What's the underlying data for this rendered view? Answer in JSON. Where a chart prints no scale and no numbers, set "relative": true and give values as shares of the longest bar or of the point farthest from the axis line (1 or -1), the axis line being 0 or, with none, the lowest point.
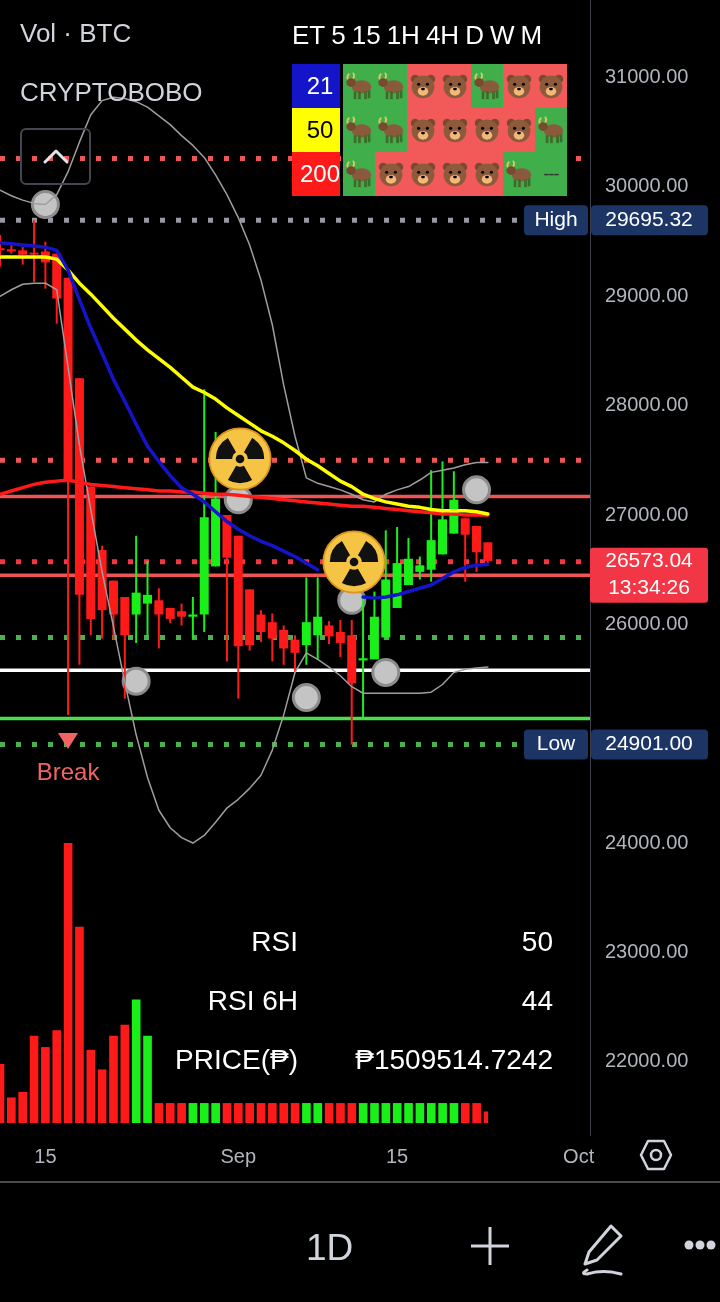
{
  "chart_data": [
    {
      "type": "candlestick",
      "title": "Vol · BTC",
      "subtitle": "CRYPTOBOBO",
      "x": [
        "--08-11",
        "--08-12",
        "--08-13",
        "--08-14",
        "--08-15",
        "--08-16",
        "--08-17",
        "--08-18",
        "--08-19",
        "--08-20",
        "--08-21",
        "--08-22",
        "--08-23",
        "--08-24",
        "--08-25",
        "--08-26",
        "--08-27",
        "--08-28",
        "--08-29",
        "--08-30",
        "--08-31",
        "--09-01",
        "--09-02",
        "--09-03",
        "--09-04",
        "--09-05",
        "--09-06",
        "--09-07",
        "--09-08",
        "--09-09",
        "--09-10",
        "--09-11",
        "--09-12",
        "--09-13",
        "--09-14",
        "--09-15",
        "--09-16",
        "--09-17",
        "--09-18",
        "--09-19",
        "--09-20",
        "--09-21",
        "--09-22",
        "--09-23"
      ],
      "ohlc": [
        [
          29440,
          29560,
          29270,
          29420
        ],
        [
          29430,
          29470,
          29390,
          29410
        ],
        [
          29420,
          29450,
          29290,
          29380
        ],
        [
          29400,
          29695.32,
          29130,
          29390
        ],
        [
          29410,
          29500,
          29070,
          29310
        ],
        [
          29390,
          29390,
          28750,
          28980
        ],
        [
          29170,
          29170,
          25170,
          27300
        ],
        [
          28250,
          28250,
          25630,
          26270
        ],
        [
          27260,
          27260,
          25900,
          26050
        ],
        [
          26680,
          26720,
          25870,
          26130
        ],
        [
          26400,
          26400,
          25860,
          26090
        ],
        [
          26250,
          26250,
          25320,
          25900
        ],
        [
          26090,
          26810,
          25830,
          26290
        ],
        [
          26190,
          26580,
          25900,
          26270
        ],
        [
          26220,
          26330,
          25780,
          26090
        ],
        [
          26150,
          26150,
          26010,
          26050
        ],
        [
          26120,
          26190,
          25990,
          26070
        ],
        [
          26070,
          26250,
          25870,
          26090
        ],
        [
          26090,
          28150,
          25930,
          26980
        ],
        [
          26530,
          27760,
          26530,
          27150
        ],
        [
          27000,
          27000,
          25660,
          26610
        ],
        [
          26810,
          26810,
          25320,
          25800
        ],
        [
          26320,
          26320,
          25760,
          25810
        ],
        [
          26090,
          26130,
          25840,
          25930
        ],
        [
          26020,
          26100,
          25660,
          25870
        ],
        [
          25950,
          25990,
          25630,
          25780
        ],
        [
          25860,
          25900,
          25560,
          25740
        ],
        [
          25810,
          26430,
          25630,
          26020
        ],
        [
          25900,
          26430,
          25680,
          26070
        ],
        [
          25990,
          26030,
          25820,
          25890
        ],
        [
          25930,
          26040,
          25700,
          25830
        ],
        [
          25900,
          26040,
          24901,
          25460
        ],
        [
          25670,
          26260,
          25150,
          25690
        ],
        [
          25680,
          26300,
          25680,
          26070
        ],
        [
          25880,
          26860,
          25880,
          26410
        ],
        [
          26150,
          26890,
          26150,
          26560
        ],
        [
          26360,
          26790,
          26360,
          26600
        ],
        [
          26480,
          26620,
          26410,
          26540
        ],
        [
          26500,
          27410,
          26390,
          26770
        ],
        [
          26640,
          27490,
          26640,
          26960
        ],
        [
          26830,
          27400,
          26830,
          27140
        ],
        [
          26970,
          26970,
          26390,
          26820
        ],
        [
          26900,
          26900,
          26480,
          26660
        ],
        [
          26750,
          26750,
          26560,
          26580
        ]
      ],
      "colors": [
        "#ff1a1a",
        "#ff1a1a",
        "#ff1a1a",
        "#ff1a1a",
        "#ff1a1a",
        "#ff1a1a",
        "#ff1a1a",
        "#ff1a1a",
        "#ff1a1a",
        "#ff1a1a",
        "#ff1a1a",
        "#ff1a1a",
        "#1aef1a",
        "#1aef1a",
        "#ff1a1a",
        "#ff1a1a",
        "#ff1a1a",
        "#1aef1a",
        "#1aef1a",
        "#1aef1a",
        "#ff1a1a",
        "#ff1a1a",
        "#ff1a1a",
        "#ff1a1a",
        "#ff1a1a",
        "#ff1a1a",
        "#ff1a1a",
        "#1aef1a",
        "#1aef1a",
        "#ff1a1a",
        "#ff1a1a",
        "#ff1a1a",
        "#1aef1a",
        "#1aef1a",
        "#1aef1a",
        "#1aef1a",
        "#1aef1a",
        "#1aef1a",
        "#1aef1a",
        "#1aef1a",
        "#1aef1a",
        "#ff1a1a",
        "#ff1a1a",
        "#ff1a1a"
      ],
      "series": [
        {
          "type": "line",
          "name": "21",
          "color": "#1414c8",
          "values": [
            29490,
            29480,
            29470,
            29460,
            29450,
            29420,
            29240,
            28970,
            28710,
            28480,
            28240,
            28040,
            27830,
            27630,
            27490,
            27360,
            27250,
            27190,
            27120,
            27030,
            26940,
            26870,
            26810,
            26760,
            26720,
            26670,
            26620,
            26560,
            26500,
            null,
            null,
            null,
            26250,
            26240,
            26250,
            26270,
            26300,
            26330,
            26360,
            26420,
            26480,
            26520,
            26540,
            26550
          ]
        },
        {
          "type": "line",
          "name": "50",
          "color": "#ffff00",
          "values": [
            29360,
            29360,
            29360,
            29360,
            29360,
            29340,
            29240,
            29120,
            29020,
            28910,
            28800,
            28700,
            28600,
            28510,
            28430,
            28350,
            28260,
            28170,
            28120,
            28060,
            27980,
            27910,
            27840,
            27770,
            27720,
            27660,
            27590,
            27510,
            27450,
            27380,
            27310,
            27260,
            27190,
            27150,
            27120,
            27100,
            27080,
            27070,
            27050,
            27040,
            27040,
            27040,
            27030,
            27010
          ]
        },
        {
          "type": "line",
          "name": "200",
          "color": "#ff1a1a",
          "values": [
            27190,
            27220,
            27250,
            27280,
            27300,
            27310,
            27320,
            27300,
            27280,
            27270,
            27260,
            27250,
            27240,
            27230,
            27220,
            27220,
            27210,
            27210,
            27200,
            27190,
            27190,
            27180,
            27170,
            27160,
            27150,
            27140,
            27130,
            27120,
            27110,
            27100,
            27090,
            27080,
            27080,
            27070,
            27060,
            27050,
            27040,
            27030,
            27020,
            27010,
            27010,
            27000,
            27000,
            27000
          ]
        },
        {
          "type": "line",
          "color": "#9e9e9e",
          "values": [
            29970,
            29920,
            29880,
            29850,
            29840,
            29930,
            30140,
            30410,
            30660,
            30790,
            30820,
            30810,
            30780,
            30730,
            30650,
            30570,
            30470,
            30380,
            30270,
            30110,
            29930,
            29720,
            29470,
            29150,
            28740,
            28190,
            27720,
            27340,
            27290,
            27260,
            27230,
            27190,
            27140,
            27120,
            27190,
            27230,
            27260,
            27320,
            27390,
            27410,
            27430,
            27460,
            27480,
            27480
          ]
        },
        {
          "type": "line",
          "color": "#9e9e9e",
          "values": [
            29000,
            29060,
            29110,
            29120,
            29120,
            29060,
            28350,
            27640,
            27050,
            26480,
            25980,
            25470,
            24990,
            24600,
            24300,
            24140,
            24050,
            24000,
            24070,
            24190,
            24320,
            24400,
            24500,
            24620,
            24850,
            25170,
            25560,
            25740,
            25680,
            25610,
            25530,
            25430,
            25370,
            25370,
            25370,
            25370,
            25370,
            25370,
            25380,
            25450,
            25560,
            25590,
            25600,
            25610
          ]
        },
        {
          "type": "scatter",
          "color": "#c4c4c4",
          "marker": "circle",
          "x": [
            "--08-15",
            "--08-23",
            "--09-01",
            "--09-07",
            "--09-11",
            "--09-14",
            "--09-22"
          ],
          "values": [
            29840,
            25480,
            27140,
            25330,
            26220,
            25560,
            27230
          ]
        }
      ],
      "xlim": [
        "--08-11",
        "--10-02"
      ],
      "xticks": [
        {
          "value": "--08-15",
          "label": "15"
        },
        {
          "value": "--09-01",
          "label": "Sep"
        },
        {
          "value": "--09-15",
          "label": "15"
        },
        {
          "value": "--10-01",
          "label": "Oct"
        }
      ],
      "ylim": [
        21330,
        31710
      ],
      "yticks": [
        {
          "value": 22000,
          "label": "22000.00"
        },
        {
          "value": 23000,
          "label": "23000.00"
        },
        {
          "value": 24000,
          "label": "24000.00"
        },
        {
          "value": 26000,
          "label": "26000.00"
        },
        {
          "value": 27000,
          "label": "27000.00"
        },
        {
          "value": 28000,
          "label": "28000.00"
        },
        {
          "value": 29000,
          "label": "29000.00"
        },
        {
          "value": 30000,
          "label": "30000.00"
        },
        {
          "value": 31000,
          "label": "31000.00"
        }
      ],
      "ref_lines": [
        {
          "axis": "y",
          "value": 30260,
          "color": "#f05555",
          "line_style": "dotted"
        },
        {
          "axis": "y",
          "value": 29695.32,
          "label": "29695.32",
          "color": "#9598a1",
          "line_style": "dotted"
        },
        {
          "axis": "y",
          "value": 27500,
          "color": "#f05555",
          "line_style": "dotted"
        },
        {
          "axis": "y",
          "value": 27170,
          "color": "#f05555"
        },
        {
          "axis": "y",
          "value": 26573.04,
          "label": "26573.04",
          "color": "#f23645",
          "line_style": "dotted"
        },
        {
          "axis": "y",
          "value": 26450,
          "color": "#f05555"
        },
        {
          "axis": "y",
          "value": 25880,
          "color": "#4caf50",
          "line_style": "dotted"
        },
        {
          "axis": "y",
          "value": 25580,
          "color": "#ffffff"
        },
        {
          "axis": "y",
          "value": 25140,
          "color": "#4cdd4c"
        },
        {
          "axis": "y",
          "value": 24901,
          "label": "24901.00",
          "color": "#4caf50",
          "line_style": "dotted"
        }
      ],
      "annotations": [
        "RSI",
        "50",
        "RSI 6H",
        "44",
        "PRICE(₱)",
        "₱1509514.7242",
        "ET",
        "5",
        "15",
        "1H",
        "4H",
        "D",
        "W",
        "M",
        "---",
        "1D",
        "13:34:26",
        {
          "text": "Break",
          "x": "--08-17",
          "y": 24930
        },
        {
          "text": "High",
          "y": 29695.32
        },
        {
          "text": "Low",
          "y": 24901
        }
      ],
      "legend": "top right",
      "grid": false
    },
    {
      "type": "bar",
      "relative": true,
      "categories": [
        null,
        null,
        null,
        null,
        null,
        null,
        null,
        null,
        null,
        null,
        null,
        null,
        null,
        null,
        null,
        null,
        null,
        null,
        null,
        null,
        null,
        null,
        null,
        null,
        null,
        null,
        null,
        null,
        null,
        null,
        null,
        null,
        null,
        null,
        null,
        null,
        null,
        null,
        null,
        null,
        null,
        null,
        null,
        null
      ],
      "values": [
        0.21,
        0.09,
        0.11,
        0.31,
        0.27,
        0.33,
        1,
        0.7,
        0.26,
        0.19,
        0.31,
        0.35,
        0.44,
        0.31,
        0.07,
        0.07,
        0.07,
        0.07,
        0.07,
        0.07,
        0.07,
        0.07,
        0.07,
        0.07,
        0.07,
        0.07,
        0.07,
        0.07,
        0.07,
        0.07,
        0.07,
        0.07,
        0.07,
        0.07,
        0.07,
        0.07,
        0.07,
        0.07,
        0.07,
        0.07,
        0.07,
        0.07,
        0.07,
        0.04
      ],
      "colors": [
        "#ff1a1a",
        "#ff1a1a",
        "#ff1a1a",
        "#ff1a1a",
        "#ff1a1a",
        "#ff1a1a",
        "#ff1a1a",
        "#ff1a1a",
        "#ff1a1a",
        "#ff1a1a",
        "#ff1a1a",
        "#ff1a1a",
        "#1aef1a",
        "#1aef1a",
        "#ff1a1a",
        "#ff1a1a",
        "#ff1a1a",
        "#1aef1a",
        "#1aef1a",
        "#1aef1a",
        "#ff1a1a",
        "#ff1a1a",
        "#ff1a1a",
        "#ff1a1a",
        "#ff1a1a",
        "#ff1a1a",
        "#ff1a1a",
        "#1aef1a",
        "#1aef1a",
        "#ff1a1a",
        "#ff1a1a",
        "#ff1a1a",
        "#1aef1a",
        "#1aef1a",
        "#1aef1a",
        "#1aef1a",
        "#1aef1a",
        "#1aef1a",
        "#1aef1a",
        "#1aef1a",
        "#1aef1a",
        "#ff1a1a",
        "#ff1a1a",
        "#ff1a1a"
      ]
    }
  ]
}
